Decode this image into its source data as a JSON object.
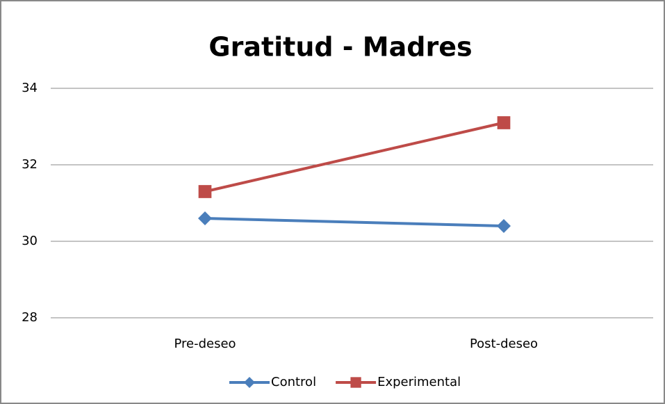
{
  "chart_data": {
    "type": "line",
    "title": "Gratitud - Madres",
    "categories": [
      "Pre-deseo",
      "Post-deseo"
    ],
    "series": [
      {
        "name": "Control",
        "color": "#4a7ebb",
        "marker": "diamond",
        "values": [
          30.6,
          30.4
        ]
      },
      {
        "name": "Experimental",
        "color": "#be4b48",
        "marker": "square",
        "values": [
          31.3,
          33.1
        ]
      }
    ],
    "ylim": [
      28,
      34
    ],
    "yticks": [
      28,
      30,
      32,
      34
    ],
    "grid": true,
    "legend": "bottom"
  }
}
